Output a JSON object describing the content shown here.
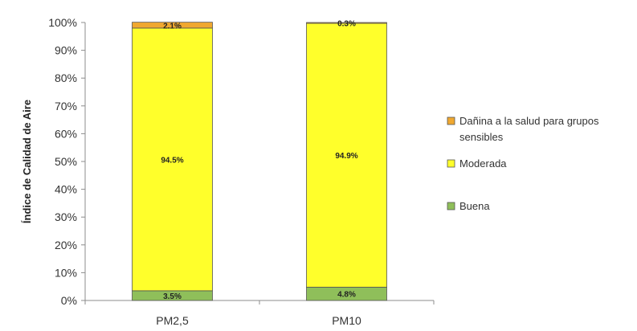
{
  "chart_data": {
    "type": "bar",
    "stacked": true,
    "categories": [
      "PM2,5",
      "PM10"
    ],
    "series": [
      {
        "name": "Buena",
        "values": [
          3.5,
          4.8
        ],
        "labels": [
          "3.5%",
          "4.8%"
        ],
        "color": "#8fbf5a"
      },
      {
        "name": "Moderada",
        "values": [
          94.5,
          94.9
        ],
        "labels": [
          "94.5%",
          "94.9%"
        ],
        "color": "#ffff2b"
      },
      {
        "name": "Dañina a la salud para grupos sensibles",
        "values": [
          2.1,
          0.3
        ],
        "labels": [
          "2.1%",
          "0.3%"
        ],
        "color": "#f0a830"
      }
    ],
    "ylabel": "Índice de Calidad de Aire",
    "yticks": [
      "0%",
      "10%",
      "20%",
      "30%",
      "40%",
      "50%",
      "60%",
      "70%",
      "80%",
      "90%",
      "100%"
    ],
    "ylim": [
      0,
      100
    ],
    "grid": false,
    "legend": {
      "position": "right",
      "entries": [
        {
          "lines": [
            "Dañina a la salud para grupos",
            "sensibles"
          ],
          "color": "#f0a830"
        },
        {
          "lines": [
            "Moderada"
          ],
          "color": "#ffff2b"
        },
        {
          "lines": [
            "Buena"
          ],
          "color": "#8fbf5a"
        }
      ]
    }
  }
}
